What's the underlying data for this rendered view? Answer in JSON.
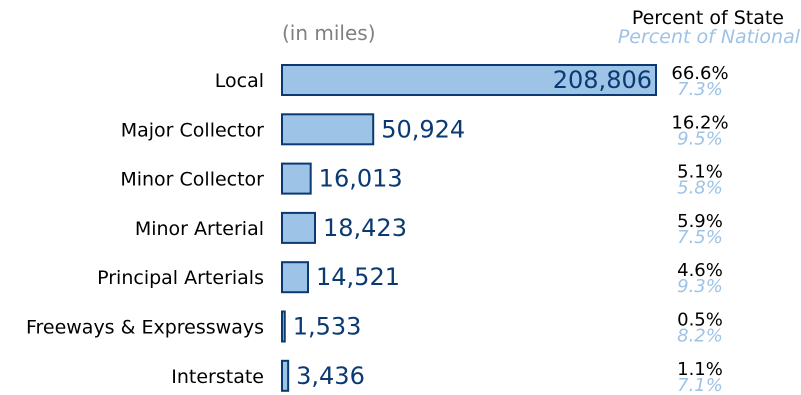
{
  "colors": {
    "bar_fill": "#9dc3e6",
    "bar_stroke": "#0b3a73",
    "value_text": "#0b3a73",
    "national_text": "#9dc3e6",
    "state_text": "#000000",
    "category_text": "#000000",
    "unit_text": "#808080"
  },
  "chart_data": {
    "type": "bar",
    "orientation": "horizontal",
    "unit_note": "(in miles)",
    "header_state": "Percent of State",
    "header_national": "Percent of National",
    "xlim": [
      0,
      208806
    ],
    "categories": [
      "Local",
      "Major Collector",
      "Minor Collector",
      "Minor Arterial",
      "Principal Arterials",
      "Freeways & Expressways",
      "Interstate"
    ],
    "values": [
      208806,
      50924,
      16013,
      18423,
      14521,
      1533,
      3436
    ],
    "value_labels": [
      "208,806",
      "50,924",
      "16,013",
      "18,423",
      "14,521",
      "1,533",
      "3,436"
    ],
    "percent_of_state": [
      "66.6%",
      "16.2%",
      "5.1%",
      "5.9%",
      "4.6%",
      "0.5%",
      "1.1%"
    ],
    "percent_of_national": [
      "7.3%",
      "9.5%",
      "5.8%",
      "7.5%",
      "9.3%",
      "8.2%",
      "7.1%"
    ]
  }
}
